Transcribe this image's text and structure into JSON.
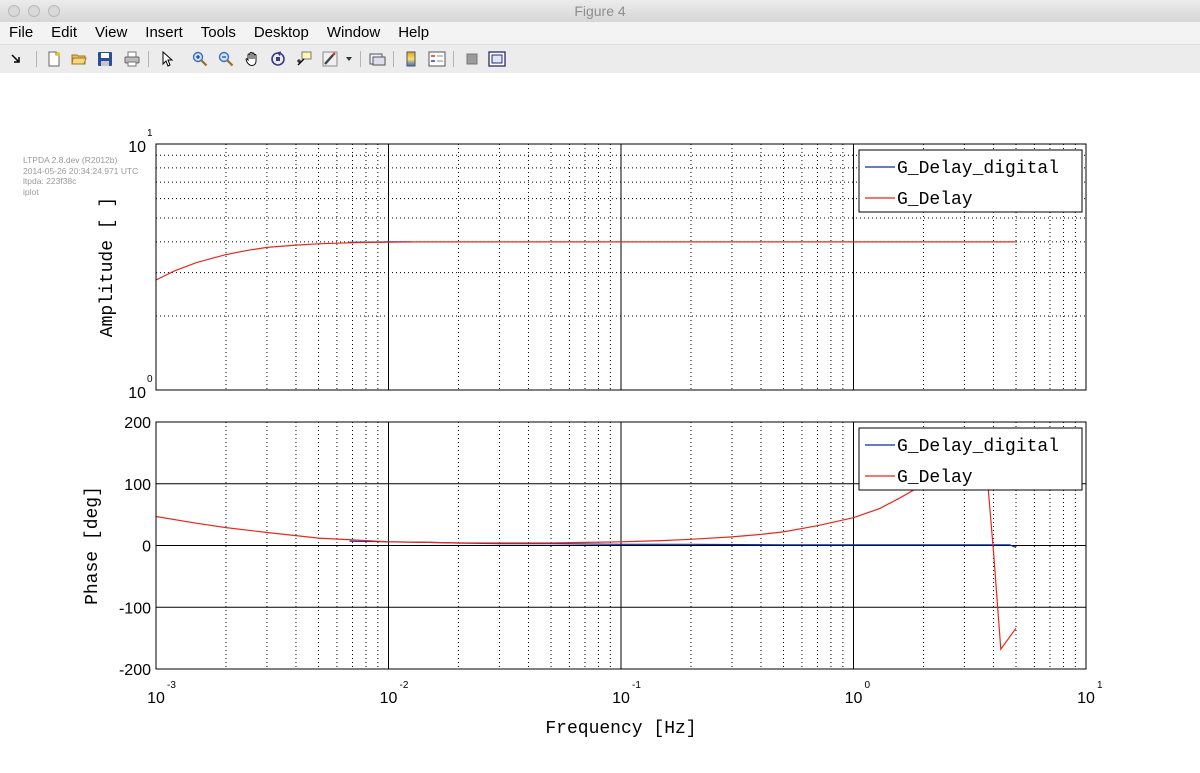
{
  "window": {
    "title": "Figure 4"
  },
  "menu": [
    "File",
    "Edit",
    "View",
    "Insert",
    "Tools",
    "Desktop",
    "Window",
    "Help"
  ],
  "toolbar": {
    "icons": [
      "dock-arrow-icon",
      "new-figure-icon",
      "open-file-icon",
      "save-icon",
      "print-icon",
      "pointer-icon",
      "zoom-in-icon",
      "zoom-out-icon",
      "pan-hand-icon",
      "rotate-3d-icon",
      "data-cursor-icon",
      "brush-icon",
      "dropdown-arrow-icon",
      "link-plot-icon",
      "colorbar-icon",
      "legend-icon",
      "hide-plot-tools-icon",
      "show-plot-tools-icon"
    ]
  },
  "meta": {
    "line1": "LTPDA 2.8.dev (R2012b)",
    "line2": "2014-05-26 20:34:24.971 UTC",
    "line3": "ltpda: 223f38c",
    "line4": "iplot"
  },
  "colors": {
    "G_Delay_digital": "#0a2ca8",
    "G_Delay": "#e8281a",
    "axis": "#000000",
    "grid": "#000000"
  },
  "chart_data": [
    {
      "type": "line",
      "panel": "amplitude",
      "xscale": "log",
      "yscale": "log",
      "xlim": [
        0.001,
        10
      ],
      "ylim": [
        1,
        10
      ],
      "ylabel": "Amplitude   [ ]",
      "xlabel": "",
      "grid": true,
      "legend_position": "top-right",
      "ytick_labels": [
        {
          "base": "10",
          "exp": "1",
          "value": 10
        },
        {
          "base": "10",
          "exp": "0",
          "value": 1
        }
      ],
      "series": [
        {
          "name": "G_Delay_digital",
          "x": [
            0.00678,
            0.007,
            0.008,
            0.01,
            0.0125
          ],
          "y": [
            3.98,
            3.99,
            3.99,
            4.0,
            4.0
          ]
        },
        {
          "name": "G_Delay",
          "x": [
            0.001,
            0.0012,
            0.0015,
            0.002,
            0.0025,
            0.003,
            0.004,
            0.005,
            0.006,
            0.008,
            0.01,
            0.013,
            0.02,
            0.05,
            0.1,
            0.5,
            1,
            2,
            4,
            5
          ],
          "y": [
            2.8,
            3.05,
            3.3,
            3.55,
            3.7,
            3.8,
            3.88,
            3.93,
            3.95,
            3.98,
            3.99,
            4.0,
            4.0,
            4.0,
            4.0,
            4.0,
            4.0,
            4.0,
            4.0,
            4.0
          ]
        }
      ]
    },
    {
      "type": "line",
      "panel": "phase",
      "xscale": "log",
      "yscale": "linear",
      "xlim": [
        0.001,
        10
      ],
      "ylim": [
        -200,
        200
      ],
      "ylabel": "Phase   [deg]",
      "xlabel": "Frequency   [Hz]",
      "grid": true,
      "legend_position": "top-right",
      "yticks": [
        200,
        100,
        0,
        -100,
        -200
      ],
      "xtick_labels": [
        {
          "base": "10",
          "exp": "-3",
          "value": 0.001
        },
        {
          "base": "10",
          "exp": "-2",
          "value": 0.01
        },
        {
          "base": "10",
          "exp": "-1",
          "value": 0.1
        },
        {
          "base": "10",
          "exp": "0",
          "value": 1
        },
        {
          "base": "10",
          "exp": "1",
          "value": 10
        }
      ],
      "series": [
        {
          "name": "G_Delay_digital",
          "x": [
            0.0068,
            0.01,
            0.015,
            0.02,
            0.03,
            0.05,
            0.1,
            0.2,
            0.5,
            1,
            2,
            3,
            4,
            4.7,
            5
          ],
          "y": [
            7,
            6,
            5,
            4,
            3,
            3,
            2,
            2,
            1,
            1,
            1,
            1,
            1,
            1,
            -3
          ]
        },
        {
          "name": "G_Delay",
          "x": [
            0.001,
            0.0015,
            0.002,
            0.003,
            0.004,
            0.005,
            0.007,
            0.01,
            0.015,
            0.02,
            0.03,
            0.05,
            0.07,
            0.1,
            0.15,
            0.2,
            0.3,
            0.4,
            0.5,
            0.7,
            1,
            1.3,
            1.6,
            1.98,
            3.8,
            4.0,
            4.3,
            5.0
          ],
          "y": [
            47,
            36,
            29,
            21,
            16,
            12,
            9,
            6,
            5,
            4,
            4,
            4,
            5,
            6,
            8,
            10,
            14,
            18,
            22,
            32,
            45,
            60,
            78,
            98,
            90,
            -10,
            -168,
            -134
          ]
        }
      ]
    }
  ]
}
